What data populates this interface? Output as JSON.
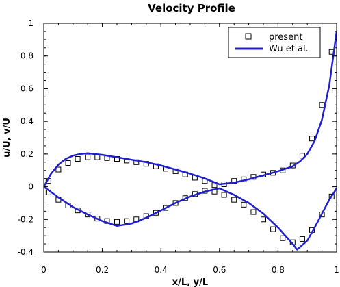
{
  "chart_data": {
    "type": "line",
    "title": "Velocity Profile",
    "xlabel": "x/L, y/L",
    "ylabel": "u/U, v/U",
    "xlim": [
      0,
      1
    ],
    "ylim": [
      -0.4,
      1
    ],
    "x_ticks": [
      0,
      0.2,
      0.4,
      0.6,
      0.8,
      1
    ],
    "x_tick_labels": [
      "0",
      "0.2",
      "0.4",
      "0.6",
      "0.8",
      "1"
    ],
    "y_ticks": [
      -0.4,
      -0.2,
      0,
      0.2,
      0.4,
      0.6,
      0.8,
      1
    ],
    "y_tick_labels": [
      "-0.4",
      "-0.2",
      "0",
      "0.2",
      "0.4",
      "0.6",
      "0.8",
      "1"
    ],
    "grid": false,
    "legend_position": "top-right",
    "colors": {
      "line": "#1f1fd0",
      "marker": "#000000"
    },
    "series": [
      {
        "name": "present",
        "style": "markers",
        "marker": "open-square",
        "curves": [
          {
            "x": [
              0.016,
              0.05,
              0.083,
              0.116,
              0.15,
              0.183,
              0.216,
              0.25,
              0.283,
              0.316,
              0.35,
              0.383,
              0.416,
              0.45,
              0.483,
              0.516,
              0.55,
              0.583,
              0.616,
              0.65,
              0.683,
              0.716,
              0.75,
              0.783,
              0.816,
              0.85,
              0.883,
              0.916,
              0.95,
              0.983
            ],
            "y": [
              0.035,
              0.105,
              0.145,
              0.17,
              0.18,
              0.18,
              0.175,
              0.17,
              0.16,
              0.15,
              0.14,
              0.125,
              0.11,
              0.095,
              0.075,
              0.055,
              0.035,
              0.01,
              0.015,
              0.035,
              0.045,
              0.06,
              0.075,
              0.085,
              0.1,
              0.13,
              0.19,
              0.295,
              0.5,
              0.825
            ]
          },
          {
            "x": [
              0.016,
              0.05,
              0.083,
              0.116,
              0.15,
              0.183,
              0.216,
              0.25,
              0.283,
              0.316,
              0.35,
              0.383,
              0.416,
              0.45,
              0.483,
              0.516,
              0.55,
              0.583,
              0.616,
              0.65,
              0.683,
              0.716,
              0.75,
              0.783,
              0.816,
              0.85,
              0.883,
              0.916,
              0.95,
              0.983
            ],
            "y": [
              -0.035,
              -0.08,
              -0.115,
              -0.145,
              -0.17,
              -0.195,
              -0.21,
              -0.215,
              -0.21,
              -0.2,
              -0.18,
              -0.16,
              -0.13,
              -0.1,
              -0.07,
              -0.045,
              -0.025,
              -0.03,
              -0.05,
              -0.08,
              -0.11,
              -0.155,
              -0.2,
              -0.26,
              -0.315,
              -0.34,
              -0.32,
              -0.265,
              -0.17,
              -0.06
            ]
          }
        ]
      },
      {
        "name": "Wu et al.",
        "style": "line",
        "curves": [
          {
            "x": [
              0,
              0.025,
              0.05,
              0.075,
              0.1,
              0.125,
              0.15,
              0.2,
              0.25,
              0.3,
              0.35,
              0.4,
              0.45,
              0.5,
              0.55,
              0.6,
              0.65,
              0.7,
              0.75,
              0.8,
              0.85,
              0.875,
              0.9,
              0.925,
              0.95,
              0.975,
              1
            ],
            "y": [
              0,
              0.08,
              0.135,
              0.17,
              0.19,
              0.2,
              0.205,
              0.195,
              0.18,
              0.165,
              0.15,
              0.13,
              0.105,
              0.08,
              0.05,
              0.015,
              0.025,
              0.045,
              0.07,
              0.095,
              0.125,
              0.155,
              0.2,
              0.28,
              0.41,
              0.62,
              0.95
            ]
          },
          {
            "x": [
              0,
              0.05,
              0.1,
              0.15,
              0.2,
              0.25,
              0.3,
              0.35,
              0.4,
              0.45,
              0.5,
              0.55,
              0.6,
              0.65,
              0.7,
              0.75,
              0.8,
              0.825,
              0.85,
              0.865,
              0.9,
              0.925,
              0.95,
              0.975,
              1
            ],
            "y": [
              0,
              -0.065,
              -0.125,
              -0.17,
              -0.21,
              -0.24,
              -0.225,
              -0.19,
              -0.145,
              -0.1,
              -0.06,
              -0.03,
              -0.01,
              -0.05,
              -0.1,
              -0.165,
              -0.25,
              -0.3,
              -0.35,
              -0.385,
              -0.33,
              -0.25,
              -0.165,
              -0.08,
              -0.01
            ]
          }
        ]
      }
    ]
  }
}
